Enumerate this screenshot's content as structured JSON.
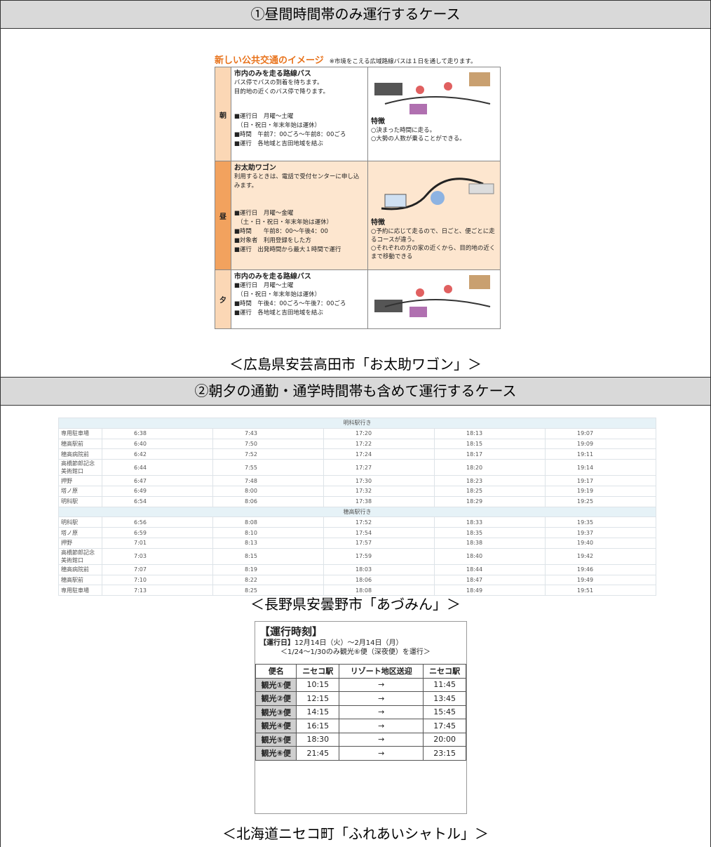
{
  "section1": {
    "title": "①昼間時間帯のみ運行するケース",
    "infographic": {
      "title": "新しい公共交通のイメージ",
      "note": "※市境をこえる広域路線バスは１日を通して走ります。",
      "rows": [
        {
          "label": "朝",
          "service": "市内のみを走る路線バス",
          "lines": [
            "バス停でバスの到着を待ちます。",
            "目的地の近くのバス停で降ります。"
          ],
          "details": [
            "■運行日　月曜～土曜",
            "　（日・祝日・年末年始は運休）",
            "■時間　午前7：00ごろ～午前8：00ごろ",
            "■運行　各地域と吉田地域を結ぶ"
          ],
          "features_title": "特徴",
          "features": [
            "○決まった時間に走る。",
            "○大勢の人数が乗ることができる。"
          ]
        },
        {
          "label": "昼",
          "service": "お太助ワゴン",
          "lines": [
            "利用するときは、電話で受付センターに申し込みます。"
          ],
          "details": [
            "■運行日　月曜～金曜",
            "　（土・日・祝日・年末年始は運休）",
            "■時間　　午前8：00～午後4：00",
            "■対象者　利用登録をした方",
            "■運行　出発時間から最大１時間で運行"
          ],
          "features_title": "特徴",
          "features": [
            "○予約に応じて走るので、日ごと、便ごとに走るコースが違う。",
            "○それぞれの方の家の近くから、目的地の近くまで移動できる"
          ]
        },
        {
          "label": "夕",
          "service": "市内のみを走る路線バス",
          "lines": [],
          "details": [
            "■運行日　月曜～土曜",
            "　（日・祝日・年末年始は運休）",
            "■時間　午後4：00ごろ～午後7：00ごろ",
            "■運行　各地域と吉田地域を結ぶ"
          ],
          "features": []
        }
      ]
    },
    "caption": "＜広島県安芸高田市「お太助ワゴン」＞"
  },
  "section2": {
    "title": "②朝夕の通勤・通学時間帯も含めて運行するケース",
    "timetable": {
      "groups": [
        {
          "heading": "明科駅行き",
          "rows": [
            [
              "専用駐車場",
              "6:38",
              "7:43",
              "17:20",
              "18:13",
              "19:07"
            ],
            [
              "穂高駅前",
              "6:40",
              "7:50",
              "17:22",
              "18:15",
              "19:09"
            ],
            [
              "穂高病院前",
              "6:42",
              "7:52",
              "17:24",
              "18:17",
              "19:11"
            ],
            [
              "高橋節郎記念美術館口",
              "6:44",
              "7:55",
              "17:27",
              "18:20",
              "19:14"
            ],
            [
              "押野",
              "6:47",
              "7:48",
              "17:30",
              "18:23",
              "19:17"
            ],
            [
              "塔ノ原",
              "6:49",
              "8:00",
              "17:32",
              "18:25",
              "19:19"
            ],
            [
              "明科駅",
              "6:54",
              "8:06",
              "17:38",
              "18:29",
              "19:25"
            ]
          ]
        },
        {
          "heading": "穂高駅行き",
          "rows": [
            [
              "明科駅",
              "6:56",
              "8:08",
              "17:52",
              "18:33",
              "19:35"
            ],
            [
              "塔ノ原",
              "6:59",
              "8:10",
              "17:54",
              "18:35",
              "19:37"
            ],
            [
              "押野",
              "7:01",
              "8:13",
              "17:57",
              "18:38",
              "19:40"
            ],
            [
              "高橋節郎記念美術館口",
              "7:03",
              "8:15",
              "17:59",
              "18:40",
              "19:42"
            ],
            [
              "穂高病院前",
              "7:07",
              "8:19",
              "18:03",
              "18:44",
              "19:46"
            ],
            [
              "穂高駅前",
              "7:10",
              "8:22",
              "18:06",
              "18:47",
              "19:49"
            ],
            [
              "専用駐車場",
              "7:13",
              "8:25",
              "18:08",
              "18:49",
              "19:51"
            ]
          ]
        }
      ]
    },
    "caption1": "＜長野県安曇野市「あづみん」＞",
    "schedule": {
      "title": "【運行時刻】",
      "days_label": "【運行日】",
      "days": "12月14日（火）～2月14日（月）",
      "note": "＜1/24～1/30のみ観光⑥便（深夜便）を運行＞",
      "headers": [
        "便名",
        "ニセコ駅",
        "リゾート地区送迎",
        "ニセコ駅"
      ],
      "rows": [
        [
          "観光①便",
          "10:15",
          "→",
          "11:45"
        ],
        [
          "観光②便",
          "12:15",
          "→",
          "13:45"
        ],
        [
          "観光③便",
          "14:15",
          "→",
          "15:45"
        ],
        [
          "観光④便",
          "16:15",
          "→",
          "17:45"
        ],
        [
          "観光⑤便",
          "18:30",
          "→",
          "20:00"
        ],
        [
          "観光⑥便",
          "21:45",
          "→",
          "23:15"
        ]
      ]
    },
    "caption2": "＜北海道ニセコ町「ふれあいシャトル」＞"
  }
}
